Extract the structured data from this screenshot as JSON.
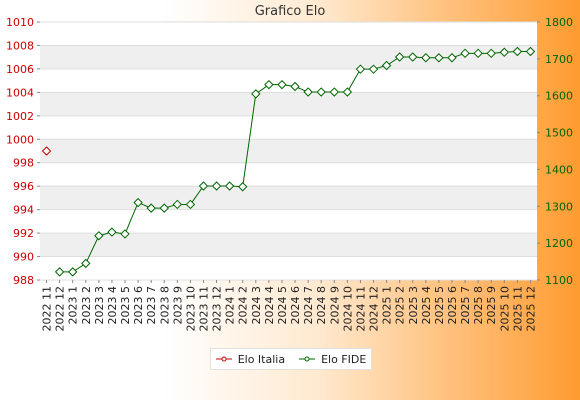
{
  "chart_data": {
    "type": "line",
    "title": "Grafico Elo",
    "categories": [
      "2022 11",
      "2022 12",
      "2023 1",
      "2023 2",
      "2023 3",
      "2023 4",
      "2023 5",
      "2023 6",
      "2023 7",
      "2023 8",
      "2023 9",
      "2023 10",
      "2023 11",
      "2023 12",
      "2024 1",
      "2024 2",
      "2024 3",
      "2024 4",
      "2024 5",
      "2024 6",
      "2024 7",
      "2024 8",
      "2024 9",
      "2024 10",
      "2024 11",
      "2024 12",
      "2025 1",
      "2025 2",
      "2025 3",
      "2025 4",
      "2025 5",
      "2025 6",
      "2025 7",
      "2025 8",
      "2025 9",
      "2025 10",
      "2025 11",
      "2025 12"
    ],
    "left_axis": {
      "ylim": [
        988,
        1010
      ],
      "ticks": [
        "988",
        "990",
        "992",
        "994",
        "996",
        "998",
        "1000",
        "1002",
        "1004",
        "1006",
        "1008",
        "1010"
      ],
      "color": "#cc0000"
    },
    "right_axis": {
      "ylim": [
        1100,
        1800
      ],
      "ticks": [
        "1100",
        "1200",
        "1300",
        "1400",
        "1500",
        "1600",
        "1700",
        "1800"
      ],
      "color": "#006600"
    },
    "series": [
      {
        "name": "Elo Italia",
        "axis": "left",
        "color": "#cc0000",
        "values": [
          999,
          null,
          null,
          null,
          null,
          null,
          null,
          null,
          null,
          null,
          null,
          null,
          null,
          null,
          null,
          null,
          null,
          null,
          null,
          null,
          null,
          null,
          null,
          null,
          null,
          null,
          null,
          null,
          null,
          null,
          null,
          null,
          null,
          null,
          null,
          null,
          null,
          null
        ]
      },
      {
        "name": "Elo FIDE",
        "axis": "right",
        "color": "#006600",
        "values": [
          null,
          1122,
          1122,
          1145,
          1220,
          1230,
          1225,
          1310,
          1295,
          1295,
          1305,
          1305,
          1355,
          1355,
          1355,
          1353,
          1605,
          1630,
          1630,
          1625,
          1610,
          1610,
          1610,
          1610,
          1672,
          1672,
          1682,
          1705,
          1705,
          1703,
          1703,
          1703,
          1715,
          1715,
          1715,
          1718,
          1720,
          1720
        ]
      }
    ],
    "grid": true,
    "legend_position": "bottom-center"
  }
}
